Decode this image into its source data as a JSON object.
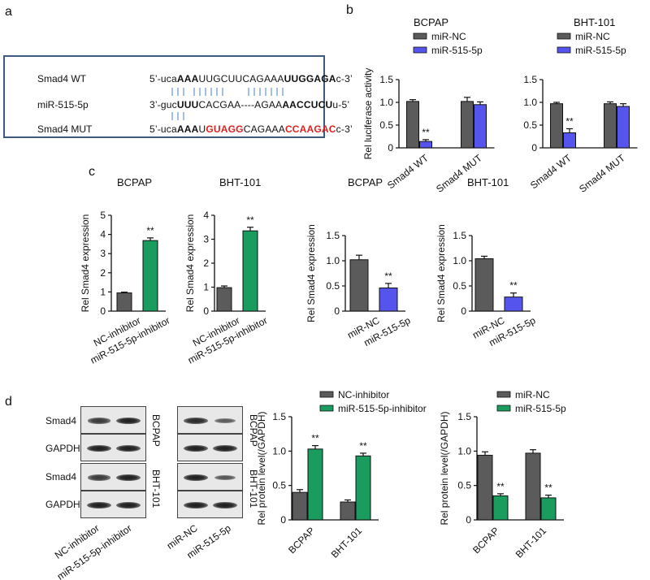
{
  "panels": {
    "a": "a",
    "b": "b",
    "c": "c",
    "d": "d"
  },
  "panel_a": {
    "rows": [
      {
        "name": "Smad4 WT",
        "segments": [
          {
            "t": "5’-uca",
            "s": "n"
          },
          {
            "t": "AAA",
            "s": "b"
          },
          {
            "t": "UUGCUUCAGAAA",
            "s": "n"
          },
          {
            "t": "UUGGAGA",
            "s": "b"
          },
          {
            "t": "c-3’",
            "s": "n"
          }
        ]
      },
      {
        "name": "miR-515-5p",
        "segments": [
          {
            "t": "3’-guc",
            "s": "n"
          },
          {
            "t": "UUU",
            "s": "b"
          },
          {
            "t": "CACGAA----AGAA",
            "s": "n"
          },
          {
            "t": "AACCUCU",
            "s": "b"
          },
          {
            "t": "u-5’",
            "s": "n"
          }
        ]
      },
      {
        "name": "Smad4 MUT",
        "segments": [
          {
            "t": "5’-uca",
            "s": "n"
          },
          {
            "t": "AAA",
            "s": "b"
          },
          {
            "t": "U",
            "s": "n"
          },
          {
            "t": "GUAGG",
            "s": "r"
          },
          {
            "t": "CAGAAA",
            "s": "n"
          },
          {
            "t": "CCAAGAC",
            "s": "r"
          },
          {
            "t": "c-3’",
            "s": "n"
          }
        ]
      }
    ]
  },
  "colors": {
    "gray": "#5b5b5b",
    "blue": "#5555ee",
    "green": "#1a9c5f"
  },
  "chart_data": [
    {
      "id": "b1",
      "type": "bar",
      "title": "BCPAP",
      "ylabel": "Rel luciferase activity",
      "ylim": [
        0,
        1.5
      ],
      "yticks": [
        "0",
        "0.5",
        "1.0",
        "1.5"
      ],
      "categories": [
        "Smad4 WT",
        "Smad4 MUT"
      ],
      "series": [
        {
          "name": "miR-NC",
          "values": [
            1.02,
            1.02
          ],
          "err": [
            0.04,
            0.09
          ]
        },
        {
          "name": "miR-515-5p",
          "values": [
            0.14,
            0.95
          ],
          "err": [
            0.04,
            0.06
          ]
        }
      ],
      "sig": [
        "**",
        ""
      ]
    },
    {
      "id": "b2",
      "type": "bar",
      "title": "BHT-101",
      "ylabel": "",
      "ylim": [
        0,
        1.5
      ],
      "yticks": [
        "0",
        "0.5",
        "1.0",
        "1.5"
      ],
      "categories": [
        "Smad4 WT",
        "Smad4 MUT"
      ],
      "series": [
        {
          "name": "miR-NC",
          "values": [
            0.97,
            0.97
          ],
          "err": [
            0.03,
            0.04
          ]
        },
        {
          "name": "miR-515-5p",
          "values": [
            0.33,
            0.91
          ],
          "err": [
            0.09,
            0.06
          ]
        }
      ],
      "sig": [
        "**",
        ""
      ]
    },
    {
      "id": "c1",
      "type": "bar",
      "title": "BCPAP",
      "ylabel": "Rel Smad4 expression",
      "ylim": [
        0,
        5
      ],
      "yticks": [
        "0",
        "1",
        "2",
        "3",
        "4",
        "5"
      ],
      "categories": [
        "NC-inhibitor",
        "miR-515-5p-inhibitor"
      ],
      "values": [
        0.95,
        3.68
      ],
      "err": [
        0.04,
        0.14
      ],
      "sig": [
        "",
        "**"
      ]
    },
    {
      "id": "c2",
      "type": "bar",
      "title": "BHT-101",
      "ylabel": "Rel Smad4 expression",
      "ylim": [
        0,
        4
      ],
      "yticks": [
        "0",
        "1",
        "2",
        "3",
        "4"
      ],
      "categories": [
        "NC-inhibitor",
        "miR-515-5p-inhibitor"
      ],
      "values": [
        0.98,
        3.35
      ],
      "err": [
        0.07,
        0.15
      ],
      "sig": [
        "",
        "**"
      ]
    },
    {
      "id": "c3",
      "type": "bar",
      "title": "BCPAP",
      "ylabel": "Rel Smad4 expression",
      "ylim": [
        0,
        1.5
      ],
      "yticks": [
        "0",
        "0.5",
        "1.0",
        "1.5"
      ],
      "categories": [
        "miR-NC",
        "miR-515-5p"
      ],
      "values": [
        1.02,
        0.46
      ],
      "err": [
        0.09,
        0.09
      ],
      "sig": [
        "",
        "**"
      ]
    },
    {
      "id": "c4",
      "type": "bar",
      "title": "BHT-101",
      "ylabel": "Rel Smad4 expression",
      "ylim": [
        0,
        1.5
      ],
      "yticks": [
        "0",
        "0.5",
        "1.0",
        "1.5"
      ],
      "categories": [
        "miR-NC",
        "miR-515-5p"
      ],
      "values": [
        1.04,
        0.28
      ],
      "err": [
        0.05,
        0.08
      ],
      "sig": [
        "",
        "**"
      ]
    },
    {
      "id": "d1",
      "type": "bar",
      "title": "",
      "ylabel": "Rel protein level(/GAPDH)",
      "ylim": [
        0,
        1.5
      ],
      "yticks": [
        "0",
        "0.5",
        "1.0",
        "1.5"
      ],
      "categories": [
        "BCPAP",
        "BHT-101"
      ],
      "series": [
        {
          "name": "NC-inhibitor",
          "values": [
            0.4,
            0.26
          ],
          "err": [
            0.04,
            0.03
          ]
        },
        {
          "name": "miR-515-5p-inhibitor",
          "values": [
            1.03,
            0.93
          ],
          "err": [
            0.05,
            0.04
          ]
        }
      ],
      "sig": [
        "**",
        "**"
      ]
    },
    {
      "id": "d2",
      "type": "bar",
      "title": "",
      "ylabel": "Rel protein level(/GAPDH)",
      "ylim": [
        0,
        1.5
      ],
      "yticks": [
        "0",
        "0.5",
        "1.0",
        "1.5"
      ],
      "categories": [
        "BCPAP",
        "BHT-101"
      ],
      "series": [
        {
          "name": "miR-NC",
          "values": [
            0.94,
            0.97
          ],
          "err": [
            0.05,
            0.05
          ]
        },
        {
          "name": "miR-515-5p",
          "values": [
            0.35,
            0.32
          ],
          "err": [
            0.03,
            0.04
          ]
        }
      ],
      "sig": [
        "**",
        "**"
      ]
    }
  ],
  "blots": {
    "left": {
      "rows": [
        "Smad4",
        "GAPDH",
        "Smad4",
        "GAPDH"
      ],
      "cells": [
        "BCPAP",
        "BHT-101"
      ],
      "lanes": [
        "NC-inhibitor",
        "miR-515-5p-inhibitor"
      ],
      "intensity": [
        [
          0.75,
          1.0
        ],
        [
          1.0,
          1.0
        ],
        [
          0.75,
          1.0
        ],
        [
          1.0,
          1.0
        ]
      ]
    },
    "right": {
      "cells": [
        "BCPAP",
        "BHT-101"
      ],
      "lanes": [
        "miR-NC",
        "miR-515-5p"
      ],
      "intensity": [
        [
          0.9,
          0.45
        ],
        [
          1.0,
          1.0
        ],
        [
          1.0,
          0.5
        ],
        [
          1.0,
          1.0
        ]
      ]
    }
  }
}
